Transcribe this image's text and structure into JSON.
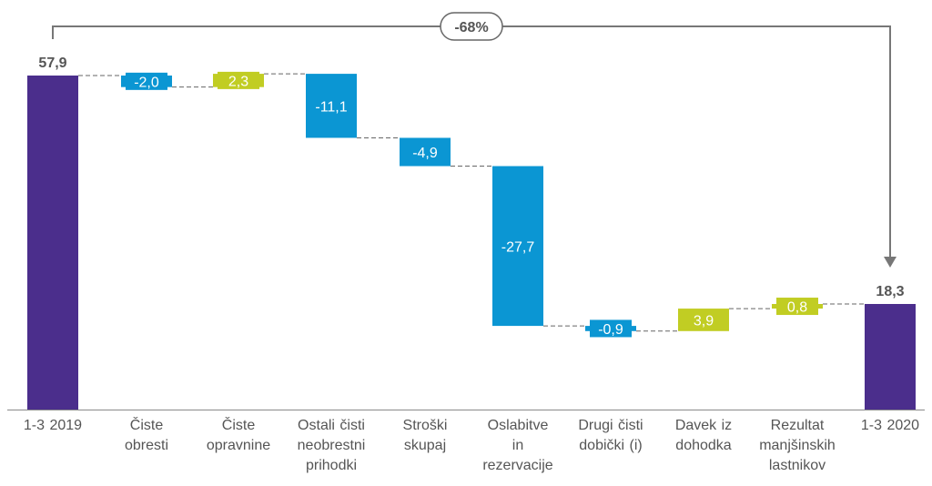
{
  "chart_data": {
    "type": "waterfall",
    "categories": [
      "1-3 2019",
      "Čiste obresti",
      "Čiste opravnine",
      "Ostali čisti neobrestni prihodki",
      "Stroški skupaj",
      "Oslabitve in rezervacije",
      "Drugi čisti dobički (i)",
      "Davek iz dohodka",
      "Rezultat manjšinskih lastnikov",
      "1-3 2020"
    ],
    "category_lines": [
      [
        "1-3 2019"
      ],
      [
        "Čiste",
        "obresti"
      ],
      [
        "Čiste",
        "opravnine"
      ],
      [
        "Ostali čisti",
        "neobrestni",
        "prihodki"
      ],
      [
        "Stroški",
        "skupaj"
      ],
      [
        "Oslabitve",
        "in",
        "rezervacije"
      ],
      [
        "Drugi čisti",
        "dobički (i)"
      ],
      [
        "Davek iz",
        "dohodka"
      ],
      [
        "Rezultat",
        "manjšinskih",
        "lastnikov"
      ],
      [
        "1-3 2020"
      ]
    ],
    "values": [
      57.9,
      -2.0,
      2.3,
      -11.1,
      -4.9,
      -27.7,
      -0.9,
      3.9,
      0.8,
      18.3
    ],
    "kinds": [
      "total",
      "delta",
      "delta",
      "delta",
      "delta",
      "delta",
      "delta",
      "delta",
      "delta",
      "total"
    ],
    "value_labels": [
      "57,9",
      "-2,0",
      "2,3",
      "-11,1",
      "-4,9",
      "-27,7",
      "-0,9",
      "3,9",
      "0,8",
      "18,3"
    ],
    "change_annotation": "-68%",
    "colors": {
      "total": "#4b2e8c",
      "negative": "#0b96d3",
      "positive": "#c1cd23"
    }
  }
}
